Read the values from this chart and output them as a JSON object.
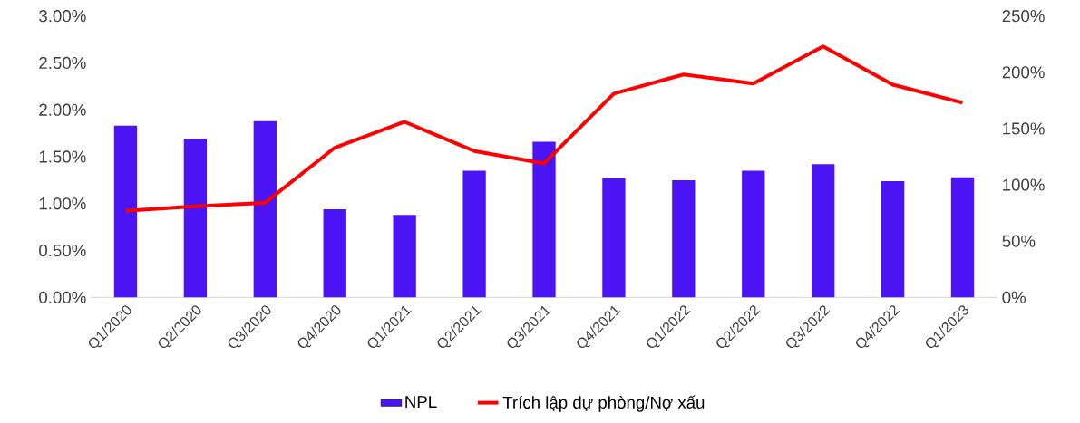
{
  "chart_data": {
    "type": "bar",
    "categories": [
      "Q1/2020",
      "Q2/2020",
      "Q3/2020",
      "Q4/2020",
      "Q1/2021",
      "Q2/2021",
      "Q3/2021",
      "Q4/2021",
      "Q1/2022",
      "Q2/2022",
      "Q3/2022",
      "Q4/2022",
      "Q1/2023"
    ],
    "series": [
      {
        "name": "NPL",
        "color": "#4a14f5",
        "values": [
          1.83,
          1.69,
          1.88,
          0.94,
          0.88,
          1.35,
          1.66,
          1.27,
          1.25,
          1.35,
          1.42,
          1.24,
          1.28
        ]
      },
      {
        "name": "Trích lập dự phòng/Nợ xấu",
        "type": "line",
        "axis": "y2",
        "color": "#ff0000",
        "values": [
          77,
          81,
          84,
          133,
          156,
          130,
          119,
          181,
          198,
          190,
          223,
          189,
          173
        ]
      }
    ],
    "ylim": [
      0,
      3
    ],
    "yticks": [
      {
        "value": 0,
        "label": "0.00%"
      },
      {
        "value": 0.5,
        "label": "0.50%"
      },
      {
        "value": 1,
        "label": "1.00%"
      },
      {
        "value": 1.5,
        "label": "1.50%"
      },
      {
        "value": 2,
        "label": "2.00%"
      },
      {
        "value": 2.5,
        "label": "2.50%"
      },
      {
        "value": 3,
        "label": "3.00%"
      }
    ],
    "y2lim": [
      0,
      250
    ],
    "y2ticks": [
      {
        "value": 0,
        "label": "0%"
      },
      {
        "value": 50,
        "label": "50%"
      },
      {
        "value": 100,
        "label": "100%"
      },
      {
        "value": 150,
        "label": "150%"
      },
      {
        "value": 200,
        "label": "200%"
      },
      {
        "value": 250,
        "label": "250%"
      }
    ],
    "legend": "bottom"
  }
}
